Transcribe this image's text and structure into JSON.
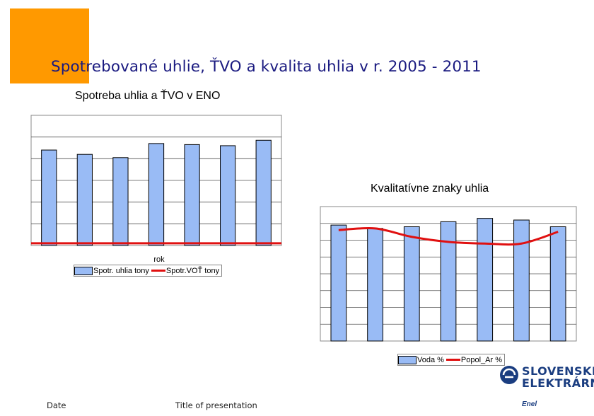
{
  "colors": {
    "orange": "#ff9900",
    "title_blue": "#1a1a80",
    "bar_fill": "#99bbf5",
    "bar_stroke": "#000000",
    "line_red": "#e01010",
    "plot_bg": "#ffffff",
    "logo_blue": "#1a3d80"
  },
  "title": "Spotrebované uhlie, ŤVO a kvalita uhlia v r. 2005 - 2011",
  "chart_data": [
    {
      "type": "bar",
      "title": "Spotreba uhlia a ŤVO v ENO",
      "xlabel": "rok",
      "categories": [
        "",
        "",
        "",
        "",
        "",
        "",
        ""
      ],
      "series": [
        {
          "name": "Spotr. uhlia tony",
          "kind": "bar",
          "values": [
            88,
            84,
            81,
            94,
            93,
            92,
            97
          ]
        },
        {
          "name": "Spotr.VOŤ tony",
          "kind": "line",
          "values": [
            2,
            2,
            2,
            2,
            2,
            2,
            2
          ]
        }
      ],
      "ylim": [
        0,
        120
      ],
      "grid": true,
      "legend": "bottom"
    },
    {
      "type": "bar",
      "title": "Kvalitatívne znaky uhlia",
      "categories": [
        "",
        "",
        "",
        "",
        "",
        "",
        ""
      ],
      "series": [
        {
          "name": "Voda %",
          "kind": "bar",
          "values": [
            69,
            67,
            68,
            71,
            73,
            72,
            68
          ]
        },
        {
          "name": "Popol_Ar %",
          "kind": "line",
          "values": [
            66,
            67,
            62,
            59,
            58,
            58,
            65
          ]
        }
      ],
      "ylim": [
        0,
        80
      ],
      "grid": true,
      "legend": "bottom-right"
    }
  ],
  "legend1": {
    "bar_label": "Spotr. uhlia tony",
    "line_label": "Spotr.VOŤ tony"
  },
  "legend2": {
    "bar_label": "Voda %",
    "line_label": "Popol_Ar %"
  },
  "footer": {
    "date": "Date",
    "presentation": "Title of presentation"
  },
  "logo": {
    "line1": "SLOVENSKÉ",
    "line2": "ELEKTRÁRNE",
    "brand": "Enel"
  }
}
